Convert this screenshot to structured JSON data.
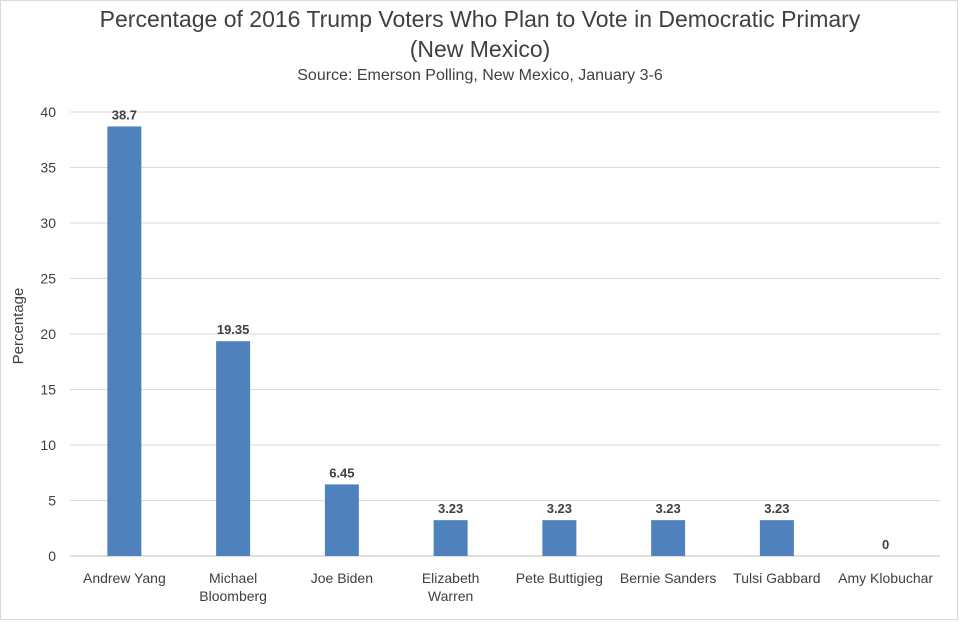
{
  "chart_data": {
    "type": "bar",
    "title_line1": "Percentage of 2016 Trump Voters Who Plan to Vote in Democratic Primary",
    "title_line2": "(New Mexico)",
    "subtitle": "Source: Emerson Polling, New Mexico, January 3-6",
    "xlabel": "",
    "ylabel": "Percentage",
    "ylim": [
      0,
      40
    ],
    "yticks": [
      0,
      5,
      10,
      15,
      20,
      25,
      30,
      35,
      40
    ],
    "grid": true,
    "categories": [
      [
        "Andrew Yang"
      ],
      [
        "Michael",
        "Bloomberg"
      ],
      [
        "Joe Biden"
      ],
      [
        "Elizabeth",
        "Warren"
      ],
      [
        "Pete Buttigieg"
      ],
      [
        "Bernie Sanders"
      ],
      [
        "Tulsi Gabbard"
      ],
      [
        "Amy Klobuchar"
      ]
    ],
    "values": [
      38.7,
      19.35,
      6.45,
      3.23,
      3.23,
      3.23,
      3.23,
      0
    ],
    "value_labels": [
      "38.7",
      "19.35",
      "6.45",
      "3.23",
      "3.23",
      "3.23",
      "3.23",
      "0"
    ],
    "bar_color": "#4f81bd",
    "grid_color": "#d9d9d9"
  }
}
